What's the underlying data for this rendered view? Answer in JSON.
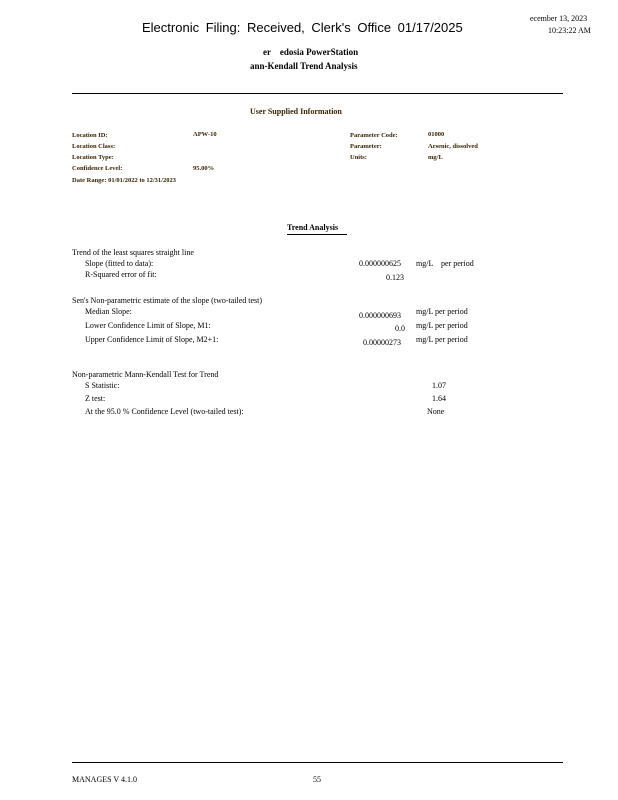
{
  "stamp": "Electronic Filing: Received, Clerk's Office 01/17/2025",
  "header": {
    "date": "ecember 13, 2023",
    "time": "10:23:22 AM",
    "title1": "er    edosia PowerStation",
    "title2": "ann-Kendall Trend Analysis"
  },
  "user_info": {
    "heading": "User Supplied Information",
    "location_id_label": "Location ID:",
    "location_id": "APW-10",
    "location_class_label": "Location Class:",
    "location_type_label": "Location Type:",
    "confidence_label": "Confidence Level:",
    "confidence": "95.00%",
    "date_range": "Date Range: 01/01/2022 to 12/31/2023",
    "param_code_label": "Parameter Code:",
    "param_code": "01000",
    "parameter_label": "Parameter:",
    "parameter": "Arsenic, dissolved",
    "units_label": "Units:",
    "units": "mg/L"
  },
  "trend": {
    "heading": "Trend Analysis",
    "ls_title": "Trend of the least squares straight line",
    "slope_label": "Slope (fitted to data):",
    "slope": "0.000000625",
    "slope_unit": "mg/L    per period",
    "r2_label": "R-Squared error of fit:",
    "r2": "0.123",
    "sen_title": "Sen's Non-parametric estimate of the slope (two-tailed test)",
    "median_label": "Median Slope:",
    "median": "0.000000693",
    "median_unit": "mg/L per period",
    "lower_label": "Lower Confidence Limit of Slope, M1:",
    "lower": "0.0",
    "lower_unit": "mg/L per period",
    "upper_label": "Upper Confidence Limit of Slope, M2+1:",
    "upper": "0.00000273",
    "upper_unit": "mg/L per period",
    "mk_title": "Non-parametric Mann-Kendall Test for Trend",
    "s_label": "S Statistic:",
    "s": "1.07",
    "z_label": "Z test:",
    "z": "1.64",
    "conf_label": "At the 95.0 % Confidence Level (two-tailed test):",
    "conf": "None"
  },
  "footer": {
    "version": "MANAGES V 4.1.0",
    "page": "55"
  }
}
